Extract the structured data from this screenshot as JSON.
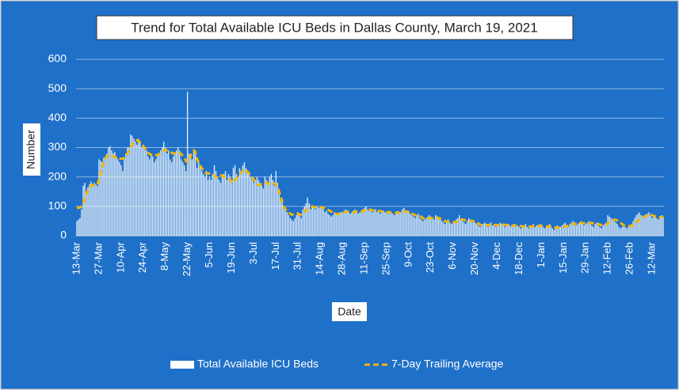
{
  "chart_data": {
    "type": "bar",
    "title": "Trend for Total Available ICU Beds in Dallas County, March 19, 2021",
    "y_label": "Number",
    "x_label": "Date",
    "ylim": [
      0,
      600
    ],
    "yticks": [
      0,
      100,
      200,
      300,
      400,
      500,
      600
    ],
    "grid": true,
    "legend": "bottom",
    "categories": [
      "13-Mar",
      null,
      null,
      null,
      null,
      null,
      null,
      null,
      null,
      null,
      null,
      null,
      null,
      null,
      "27-Mar",
      null,
      null,
      null,
      null,
      null,
      null,
      null,
      null,
      null,
      null,
      null,
      null,
      null,
      "10-Apr",
      null,
      null,
      null,
      null,
      null,
      null,
      null,
      null,
      null,
      null,
      null,
      null,
      null,
      "24-Apr",
      null,
      null,
      null,
      null,
      null,
      null,
      null,
      null,
      null,
      null,
      null,
      null,
      null,
      "8-May",
      null,
      null,
      null,
      null,
      null,
      null,
      null,
      null,
      null,
      null,
      null,
      null,
      null,
      "22-May",
      null,
      null,
      null,
      null,
      null,
      null,
      null,
      null,
      null,
      null,
      null,
      null,
      null,
      "5-Jun",
      null,
      null,
      null,
      null,
      null,
      null,
      null,
      null,
      null,
      null,
      null,
      null,
      null,
      "19-Jun",
      null,
      null,
      null,
      null,
      null,
      null,
      null,
      null,
      null,
      null,
      null,
      null,
      null,
      "3-Jul",
      null,
      null,
      null,
      null,
      null,
      null,
      null,
      null,
      null,
      null,
      null,
      null,
      null,
      "17-Jul",
      null,
      null,
      null,
      null,
      null,
      null,
      null,
      null,
      null,
      null,
      null,
      null,
      null,
      "31-Jul",
      null,
      null,
      null,
      null,
      null,
      null,
      null,
      null,
      null,
      null,
      null,
      null,
      null,
      "14-Aug",
      null,
      null,
      null,
      null,
      null,
      null,
      null,
      null,
      null,
      null,
      null,
      null,
      null,
      "28-Aug",
      null,
      null,
      null,
      null,
      null,
      null,
      null,
      null,
      null,
      null,
      null,
      null,
      null,
      "11-Sep",
      null,
      null,
      null,
      null,
      null,
      null,
      null,
      null,
      null,
      null,
      null,
      null,
      null,
      "25-Sep",
      null,
      null,
      null,
      null,
      null,
      null,
      null,
      null,
      null,
      null,
      null,
      null,
      null,
      "9-Oct",
      null,
      null,
      null,
      null,
      null,
      null,
      null,
      null,
      null,
      null,
      null,
      null,
      null,
      "23-Oct",
      null,
      null,
      null,
      null,
      null,
      null,
      null,
      null,
      null,
      null,
      null,
      null,
      null,
      "6-Nov",
      null,
      null,
      null,
      null,
      null,
      null,
      null,
      null,
      null,
      null,
      null,
      null,
      null,
      "20-Nov",
      null,
      null,
      null,
      null,
      null,
      null,
      null,
      null,
      null,
      null,
      null,
      null,
      null,
      "4-Dec",
      null,
      null,
      null,
      null,
      null,
      null,
      null,
      null,
      null,
      null,
      null,
      null,
      null,
      "18-Dec",
      null,
      null,
      null,
      null,
      null,
      null,
      null,
      null,
      null,
      null,
      null,
      null,
      null,
      "1-Jan",
      null,
      null,
      null,
      null,
      null,
      null,
      null,
      null,
      null,
      null,
      null,
      null,
      null,
      "15-Jan",
      null,
      null,
      null,
      null,
      null,
      null,
      null,
      null,
      null,
      null,
      null,
      null,
      null,
      "29-Jan",
      null,
      null,
      null,
      null,
      null,
      null,
      null,
      null,
      null,
      null,
      null,
      null,
      null,
      "12-Feb",
      null,
      null,
      null,
      null,
      null,
      null,
      null,
      null,
      null,
      null,
      null,
      null,
      null,
      "26-Feb",
      null,
      null,
      null,
      null,
      null,
      null,
      null,
      null,
      null,
      null,
      null,
      null,
      null,
      "12-Mar",
      null,
      null,
      null,
      null,
      null,
      null,
      null
    ],
    "series": [
      {
        "name": "Total Available ICU Beds",
        "type": "bar",
        "color": "#ffffff",
        "values": [
          50,
          55,
          60,
          90,
          170,
          180,
          150,
          165,
          175,
          185,
          170,
          180,
          175,
          170,
          260,
          255,
          250,
          265,
          270,
          280,
          300,
          305,
          290,
          280,
          285,
          270,
          260,
          250,
          240,
          220,
          260,
          280,
          300,
          300,
          345,
          340,
          330,
          320,
          310,
          330,
          320,
          300,
          310,
          300,
          290,
          270,
          260,
          280,
          270,
          250,
          260,
          270,
          280,
          290,
          300,
          320,
          300,
          280,
          290,
          260,
          250,
          270,
          280,
          290,
          300,
          290,
          260,
          250,
          240,
          220,
          490,
          280,
          270,
          260,
          290,
          280,
          230,
          250,
          240,
          220,
          210,
          200,
          220,
          190,
          200,
          190,
          210,
          240,
          220,
          200,
          190,
          180,
          200,
          210,
          220,
          190,
          210,
          200,
          180,
          230,
          240,
          210,
          200,
          230,
          220,
          240,
          250,
          230,
          220,
          210,
          200,
          190,
          180,
          190,
          200,
          190,
          180,
          170,
          160,
          200,
          190,
          180,
          200,
          210,
          190,
          170,
          220,
          180,
          160,
          130,
          110,
          100,
          90,
          80,
          70,
          60,
          55,
          50,
          60,
          70,
          80,
          70,
          60,
          90,
          100,
          110,
          130,
          110,
          90,
          100,
          95,
          90,
          100,
          95,
          100,
          95,
          90,
          80,
          85,
          75,
          70,
          65,
          70,
          80,
          75,
          70,
          75,
          80,
          80,
          85,
          90,
          85,
          80,
          75,
          80,
          85,
          90,
          80,
          75,
          80,
          85,
          90,
          95,
          100,
          90,
          85,
          90,
          80,
          85,
          90,
          80,
          85,
          75,
          80,
          85,
          80,
          80,
          75,
          85,
          80,
          75,
          70,
          80,
          85,
          75,
          80,
          90,
          95,
          85,
          80,
          85,
          75,
          70,
          65,
          60,
          70,
          75,
          60,
          55,
          50,
          55,
          60,
          65,
          70,
          65,
          60,
          55,
          70,
          65,
          60,
          55,
          50,
          45,
          40,
          50,
          55,
          45,
          40,
          45,
          50,
          55,
          60,
          70,
          55,
          50,
          45,
          40,
          50,
          60,
          55,
          45,
          50,
          45,
          40,
          35,
          30,
          35,
          40,
          45,
          35,
          30,
          40,
          45,
          35,
          40,
          30,
          35,
          40,
          45,
          40,
          35,
          30,
          35,
          40,
          35,
          30,
          35,
          40,
          30,
          35,
          30,
          25,
          30,
          35,
          40,
          30,
          25,
          30,
          35,
          40,
          30,
          35,
          30,
          40,
          35,
          30,
          25,
          30,
          35,
          40,
          30,
          25,
          20,
          30,
          35,
          25,
          30,
          35,
          40,
          45,
          35,
          30,
          40,
          45,
          50,
          40,
          35,
          40,
          45,
          50,
          40,
          35,
          40,
          45,
          50,
          40,
          35,
          30,
          40,
          45,
          35,
          30,
          25,
          35,
          40,
          45,
          70,
          65,
          60,
          55,
          50,
          45,
          40,
          30,
          25,
          30,
          35,
          30,
          25,
          30,
          35,
          40,
          50,
          60,
          70,
          75,
          80,
          70,
          65,
          60,
          70,
          75,
          80,
          70,
          60,
          65,
          70,
          60,
          55,
          60,
          70,
          65
        ]
      },
      {
        "name": "7-Day Trailing Average",
        "type": "line",
        "dashed": true,
        "color": "#f2b705",
        "values": [
          95,
          95,
          96,
          100,
          110,
          125,
          140,
          155,
          165,
          170,
          172,
          172,
          172,
          175,
          190,
          210,
          230,
          250,
          262,
          270,
          275,
          275,
          272,
          270,
          268,
          265,
          262,
          262,
          262,
          262,
          265,
          270,
          280,
          290,
          300,
          310,
          318,
          322,
          325,
          322,
          318,
          312,
          305,
          298,
          290,
          283,
          278,
          275,
          272,
          272,
          274,
          275,
          278,
          282,
          286,
          290,
          292,
          290,
          288,
          285,
          282,
          280,
          280,
          282,
          284,
          282,
          278,
          272,
          265,
          255,
          250,
          255,
          270,
          285,
          290,
          285,
          262,
          250,
          240,
          230,
          222,
          215,
          212,
          212,
          212,
          210,
          208,
          205,
          200,
          198,
          200,
          205,
          205,
          200,
          198,
          195,
          192,
          190,
          185,
          180,
          185,
          195,
          205,
          210,
          215,
          222,
          225,
          222,
          218,
          212,
          205,
          198,
          190,
          182,
          175,
          172,
          174,
          176,
          178,
          180,
          180,
          178,
          176,
          178,
          180,
          178,
          175,
          165,
          150,
          135,
          115,
          100,
          90,
          82,
          78,
          75,
          72,
          72,
          74,
          76,
          75,
          72,
          72,
          75,
          80,
          85,
          90,
          95,
          98,
          100,
          98,
          97,
          96,
          96,
          98,
          97,
          95,
          92,
          90,
          88,
          85,
          82,
          78,
          75,
          74,
          74,
          75,
          76,
          78,
          80,
          80,
          82,
          82,
          82,
          81,
          80,
          80,
          82,
          82,
          82,
          83,
          84,
          86,
          88,
          90,
          90,
          88,
          87,
          86,
          85,
          85,
          84,
          84,
          82,
          82,
          81,
          80,
          80,
          79,
          78,
          78,
          78,
          78,
          78,
          78,
          78,
          80,
          82,
          83,
          82,
          80,
          78,
          76,
          73,
          70,
          68,
          68,
          67,
          64,
          60,
          58,
          58,
          60,
          60,
          60,
          60,
          62,
          64,
          62,
          60,
          58,
          56,
          52,
          50,
          48,
          48,
          47,
          46,
          45,
          46,
          48,
          50,
          54,
          55,
          55,
          54,
          52,
          50,
          50,
          50,
          50,
          50,
          48,
          45,
          42,
          38,
          36,
          36,
          37,
          37,
          36,
          37,
          38,
          38,
          37,
          36,
          36,
          37,
          38,
          38,
          38,
          37,
          36,
          36,
          36,
          35,
          35,
          35,
          34,
          34,
          34,
          33,
          32,
          31,
          32,
          32,
          31,
          31,
          32,
          33,
          33,
          33,
          33,
          34,
          34,
          33,
          32,
          31,
          31,
          32,
          32,
          31,
          29,
          28,
          28,
          28,
          28,
          29,
          30,
          32,
          33,
          34,
          36,
          38,
          40,
          41,
          41,
          41,
          42,
          43,
          43,
          42,
          42,
          42,
          43,
          44,
          43,
          42,
          41,
          41,
          40,
          38,
          36,
          35,
          36,
          38,
          42,
          46,
          50,
          53,
          55,
          54,
          52,
          48,
          44,
          40,
          36,
          34,
          32,
          32,
          33,
          34,
          36,
          40,
          45,
          50,
          55,
          60,
          63,
          65,
          68,
          70,
          72,
          72,
          70,
          68,
          66,
          65,
          64,
          63,
          64,
          65
        ]
      }
    ]
  }
}
